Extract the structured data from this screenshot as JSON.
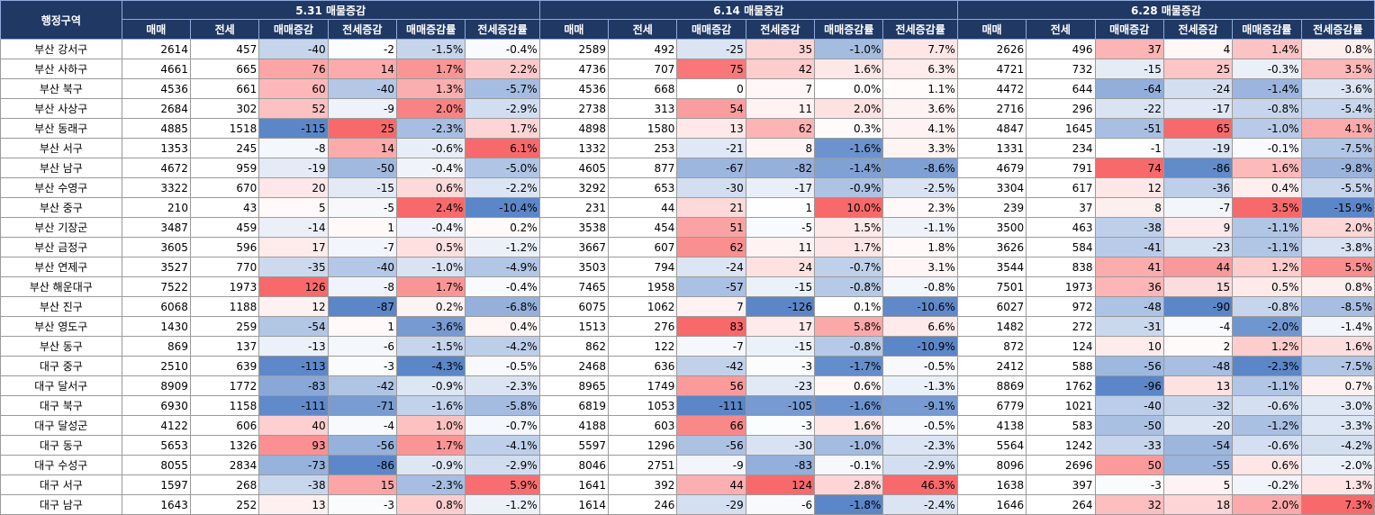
{
  "header": {
    "region_label": "행정구역",
    "groups": [
      "5.31 매물증감",
      "6.14 매물증감",
      "6.28 매물증감"
    ],
    "columns": [
      "매매",
      "전세",
      "매매증감",
      "전세증감",
      "매매증감률",
      "전세증감률"
    ]
  },
  "colors": {
    "header_bg": "#1f3864",
    "header_text": "#ffffff",
    "scale_negative": "#5b86c8",
    "scale_neutral": "#ffffff",
    "scale_positive": "#f8696b"
  },
  "rows": [
    {
      "region": "부산 강서구",
      "p1": [
        "2614",
        "457",
        "-40",
        "-2",
        "-1.5%",
        "-0.4%"
      ],
      "p2": [
        "2589",
        "492",
        "-25",
        "35",
        "-1.0%",
        "7.7%"
      ],
      "p3": [
        "2626",
        "496",
        "37",
        "4",
        "1.4%",
        "0.8%"
      ]
    },
    {
      "region": "부산 사하구",
      "p1": [
        "4661",
        "665",
        "76",
        "14",
        "1.7%",
        "2.2%"
      ],
      "p2": [
        "4736",
        "707",
        "75",
        "42",
        "1.6%",
        "6.3%"
      ],
      "p3": [
        "4721",
        "732",
        "-15",
        "25",
        "-0.3%",
        "3.5%"
      ]
    },
    {
      "region": "부산 북구",
      "p1": [
        "4536",
        "661",
        "60",
        "-40",
        "1.3%",
        "-5.7%"
      ],
      "p2": [
        "4536",
        "668",
        "0",
        "7",
        "0.0%",
        "1.1%"
      ],
      "p3": [
        "4472",
        "644",
        "-64",
        "-24",
        "-1.4%",
        "-3.6%"
      ]
    },
    {
      "region": "부산 사상구",
      "p1": [
        "2684",
        "302",
        "52",
        "-9",
        "2.0%",
        "-2.9%"
      ],
      "p2": [
        "2738",
        "313",
        "54",
        "11",
        "2.0%",
        "3.6%"
      ],
      "p3": [
        "2716",
        "296",
        "-22",
        "-17",
        "-0.8%",
        "-5.4%"
      ]
    },
    {
      "region": "부산 동래구",
      "p1": [
        "4885",
        "1518",
        "-115",
        "25",
        "-2.3%",
        "1.7%"
      ],
      "p2": [
        "4898",
        "1580",
        "13",
        "62",
        "0.3%",
        "4.1%"
      ],
      "p3": [
        "4847",
        "1645",
        "-51",
        "65",
        "-1.0%",
        "4.1%"
      ]
    },
    {
      "region": "부산 서구",
      "p1": [
        "1353",
        "245",
        "-8",
        "14",
        "-0.6%",
        "6.1%"
      ],
      "p2": [
        "1332",
        "253",
        "-21",
        "8",
        "-1.6%",
        "3.3%"
      ],
      "p3": [
        "1331",
        "234",
        "-1",
        "-19",
        "-0.1%",
        "-7.5%"
      ]
    },
    {
      "region": "부산 남구",
      "p1": [
        "4672",
        "959",
        "-19",
        "-50",
        "-0.4%",
        "-5.0%"
      ],
      "p2": [
        "4605",
        "877",
        "-67",
        "-82",
        "-1.4%",
        "-8.6%"
      ],
      "p3": [
        "4679",
        "791",
        "74",
        "-86",
        "1.6%",
        "-9.8%"
      ]
    },
    {
      "region": "부산 수영구",
      "p1": [
        "3322",
        "670",
        "20",
        "-15",
        "0.6%",
        "-2.2%"
      ],
      "p2": [
        "3292",
        "653",
        "-30",
        "-17",
        "-0.9%",
        "-2.5%"
      ],
      "p3": [
        "3304",
        "617",
        "12",
        "-36",
        "0.4%",
        "-5.5%"
      ]
    },
    {
      "region": "부산 중구",
      "p1": [
        "210",
        "43",
        "5",
        "-5",
        "2.4%",
        "-10.4%"
      ],
      "p2": [
        "231",
        "44",
        "21",
        "1",
        "10.0%",
        "2.3%"
      ],
      "p3": [
        "239",
        "37",
        "8",
        "-7",
        "3.5%",
        "-15.9%"
      ]
    },
    {
      "region": "부산 기장군",
      "p1": [
        "3487",
        "459",
        "-14",
        "1",
        "-0.4%",
        "0.2%"
      ],
      "p2": [
        "3538",
        "454",
        "51",
        "-5",
        "1.5%",
        "-1.1%"
      ],
      "p3": [
        "3500",
        "463",
        "-38",
        "9",
        "-1.1%",
        "2.0%"
      ]
    },
    {
      "region": "부산 금정구",
      "p1": [
        "3605",
        "596",
        "17",
        "-7",
        "0.5%",
        "-1.2%"
      ],
      "p2": [
        "3667",
        "607",
        "62",
        "11",
        "1.7%",
        "1.8%"
      ],
      "p3": [
        "3626",
        "584",
        "-41",
        "-23",
        "-1.1%",
        "-3.8%"
      ]
    },
    {
      "region": "부산 연제구",
      "p1": [
        "3527",
        "770",
        "-35",
        "-40",
        "-1.0%",
        "-4.9%"
      ],
      "p2": [
        "3503",
        "794",
        "-24",
        "24",
        "-0.7%",
        "3.1%"
      ],
      "p3": [
        "3544",
        "838",
        "41",
        "44",
        "1.2%",
        "5.5%"
      ]
    },
    {
      "region": "부산 해운대구",
      "p1": [
        "7522",
        "1973",
        "126",
        "-8",
        "1.7%",
        "-0.4%"
      ],
      "p2": [
        "7465",
        "1958",
        "-57",
        "-15",
        "-0.8%",
        "-0.8%"
      ],
      "p3": [
        "7501",
        "1973",
        "36",
        "15",
        "0.5%",
        "0.8%"
      ]
    },
    {
      "region": "부산 진구",
      "p1": [
        "6068",
        "1188",
        "12",
        "-87",
        "0.2%",
        "-6.8%"
      ],
      "p2": [
        "6075",
        "1062",
        "7",
        "-126",
        "0.1%",
        "-10.6%"
      ],
      "p3": [
        "6027",
        "972",
        "-48",
        "-90",
        "-0.8%",
        "-8.5%"
      ]
    },
    {
      "region": "부산 영도구",
      "p1": [
        "1430",
        "259",
        "-54",
        "1",
        "-3.6%",
        "0.4%"
      ],
      "p2": [
        "1513",
        "276",
        "83",
        "17",
        "5.8%",
        "6.6%"
      ],
      "p3": [
        "1482",
        "272",
        "-31",
        "-4",
        "-2.0%",
        "-1.4%"
      ]
    },
    {
      "region": "부산 동구",
      "p1": [
        "869",
        "137",
        "-13",
        "-6",
        "-1.5%",
        "-4.2%"
      ],
      "p2": [
        "862",
        "122",
        "-7",
        "-15",
        "-0.8%",
        "-10.9%"
      ],
      "p3": [
        "872",
        "124",
        "10",
        "2",
        "1.2%",
        "1.6%"
      ]
    },
    {
      "region": "대구 중구",
      "p1": [
        "2510",
        "639",
        "-113",
        "-3",
        "-4.3%",
        "-0.5%"
      ],
      "p2": [
        "2468",
        "636",
        "-42",
        "-3",
        "-1.7%",
        "-0.5%"
      ],
      "p3": [
        "2412",
        "588",
        "-56",
        "-48",
        "-2.3%",
        "-7.5%"
      ]
    },
    {
      "region": "대구 달서구",
      "p1": [
        "8909",
        "1772",
        "-83",
        "-42",
        "-0.9%",
        "-2.3%"
      ],
      "p2": [
        "8965",
        "1749",
        "56",
        "-23",
        "0.6%",
        "-1.3%"
      ],
      "p3": [
        "8869",
        "1762",
        "-96",
        "13",
        "-1.1%",
        "0.7%"
      ]
    },
    {
      "region": "대구 북구",
      "p1": [
        "6930",
        "1158",
        "-111",
        "-71",
        "-1.6%",
        "-5.8%"
      ],
      "p2": [
        "6819",
        "1053",
        "-111",
        "-105",
        "-1.6%",
        "-9.1%"
      ],
      "p3": [
        "6779",
        "1021",
        "-40",
        "-32",
        "-0.6%",
        "-3.0%"
      ]
    },
    {
      "region": "대구 달성군",
      "p1": [
        "4122",
        "606",
        "40",
        "-4",
        "1.0%",
        "-0.7%"
      ],
      "p2": [
        "4188",
        "603",
        "66",
        "-3",
        "1.6%",
        "-0.5%"
      ],
      "p3": [
        "4138",
        "583",
        "-50",
        "-20",
        "-1.2%",
        "-3.3%"
      ]
    },
    {
      "region": "대구 동구",
      "p1": [
        "5653",
        "1326",
        "93",
        "-56",
        "1.7%",
        "-4.1%"
      ],
      "p2": [
        "5597",
        "1296",
        "-56",
        "-30",
        "-1.0%",
        "-2.3%"
      ],
      "p3": [
        "5564",
        "1242",
        "-33",
        "-54",
        "-0.6%",
        "-4.2%"
      ]
    },
    {
      "region": "대구 수성구",
      "p1": [
        "8055",
        "2834",
        "-73",
        "-86",
        "-0.9%",
        "-2.9%"
      ],
      "p2": [
        "8046",
        "2751",
        "-9",
        "-83",
        "-0.1%",
        "-2.9%"
      ],
      "p3": [
        "8096",
        "2696",
        "50",
        "-55",
        "0.6%",
        "-2.0%"
      ]
    },
    {
      "region": "대구 서구",
      "p1": [
        "1597",
        "268",
        "-38",
        "15",
        "-2.3%",
        "5.9%"
      ],
      "p2": [
        "1641",
        "392",
        "44",
        "124",
        "2.8%",
        "46.3%"
      ],
      "p3": [
        "1638",
        "397",
        "-3",
        "5",
        "-0.2%",
        "1.3%"
      ]
    },
    {
      "region": "대구 남구",
      "p1": [
        "1643",
        "252",
        "13",
        "-3",
        "0.8%",
        "-1.2%"
      ],
      "p2": [
        "1614",
        "246",
        "-29",
        "-6",
        "-1.8%",
        "-2.4%"
      ],
      "p3": [
        "1646",
        "264",
        "32",
        "18",
        "2.0%",
        "7.3%"
      ]
    }
  ]
}
